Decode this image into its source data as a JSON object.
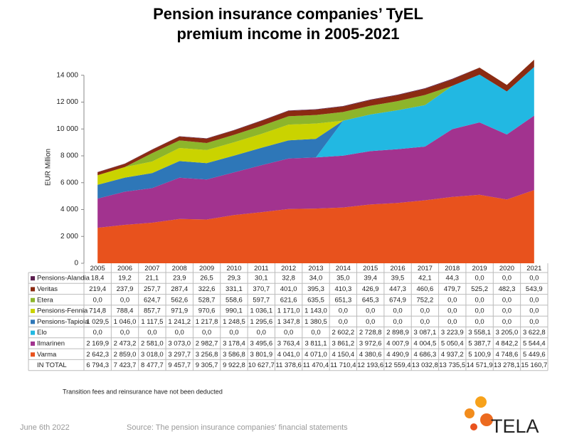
{
  "chart_data": {
    "type": "area",
    "stacked": true,
    "title": "Pension insurance companies’ TyEL premium income in 2005-2021",
    "ylabel": "EUR Million",
    "categories": [
      "2005",
      "2006",
      "2007",
      "2008",
      "2009",
      "2010",
      "2011",
      "2012",
      "2013",
      "2014",
      "2015",
      "2016",
      "2017",
      "2018",
      "2019",
      "2020",
      "2021"
    ],
    "ylim": [
      0,
      16000
    ],
    "yticks": [
      0,
      {
        "value": 2000,
        "label": "2 000"
      },
      {
        "value": 4000,
        "label": "4 000"
      },
      {
        "value": 6000,
        "label": "6 000"
      },
      {
        "value": 8000,
        "label": "8 000"
      },
      {
        "value": 10000,
        "label": "10 000"
      },
      {
        "value": 12000,
        "label": "12 000"
      },
      {
        "value": 14000,
        "label": "14 000"
      }
    ],
    "series": [
      {
        "name": "Varma",
        "color": "#e8521d",
        "values": [
          2642.3,
          2859.0,
          3018.0,
          3297.7,
          3256.8,
          3586.8,
          3801.9,
          4041.0,
          4071.0,
          4150.4,
          4380.6,
          4490.9,
          4686.3,
          4937.2,
          5100.9,
          4748.6,
          5449.6
        ],
        "value_labels": [
          "2 642,3",
          "2 859,0",
          "3 018,0",
          "3 297,7",
          "3 256,8",
          "3 586,8",
          "3 801,9",
          "4 041,0",
          "4 071,0",
          "4 150,4",
          "4 380,6",
          "4 490,9",
          "4 686,3",
          "4 937,2",
          "5 100,9",
          "4 748,6",
          "5 449,6"
        ]
      },
      {
        "name": "Ilmarinen",
        "color": "#a2338f",
        "values": [
          2169.9,
          2473.2,
          2581.0,
          3073.0,
          2982.7,
          3178.4,
          3495.6,
          3763.4,
          3811.1,
          3861.2,
          3972.6,
          4007.9,
          4004.5,
          5050.4,
          5387.7,
          4842.2,
          5544.4
        ],
        "value_labels": [
          "2 169,9",
          "2 473,2",
          "2 581,0",
          "3 073,0",
          "2 982,7",
          "3 178,4",
          "3 495,6",
          "3 763,4",
          "3 811,1",
          "3 861,2",
          "3 972,6",
          "4 007,9",
          "4 004,5",
          "5 050,4",
          "5 387,7",
          "4 842,2",
          "5 544,4"
        ]
      },
      {
        "name": "Elo",
        "color": "#22b8e2",
        "values": [
          0,
          0,
          0,
          0,
          0,
          0,
          0,
          0,
          0,
          2602.2,
          2728.8,
          2898.9,
          3087.1,
          3223.9,
          3558.1,
          3205.0,
          3622.8
        ],
        "value_labels": [
          "0,0",
          "0,0",
          "0,0",
          "0,0",
          "0,0",
          "0,0",
          "0,0",
          "0,0",
          "0,0",
          "2 602,2",
          "2 728,8",
          "2 898,9",
          "3 087,1",
          "3 223,9",
          "3 558,1",
          "3 205,0",
          "3 622,8"
        ]
      },
      {
        "name": "Pensions-Tapiola",
        "color": "#2e77b8",
        "values": [
          1029.5,
          1046.0,
          1117.5,
          1241.2,
          1217.8,
          1248.5,
          1295.6,
          1347.8,
          1380.5,
          0,
          0,
          0,
          0,
          0,
          0,
          0,
          0
        ],
        "value_labels": [
          "1 029,5",
          "1 046,0",
          "1 117,5",
          "1 241,2",
          "1 217,8",
          "1 248,5",
          "1 295,6",
          "1 347,8",
          "1 380,5",
          "0,0",
          "0,0",
          "0,0",
          "0,0",
          "0,0",
          "0,0",
          "0,0",
          "0,0"
        ]
      },
      {
        "name": "Pensions-Fennia",
        "color": "#cad300",
        "values": [
          714.8,
          788.4,
          857.7,
          971.9,
          970.6,
          990.1,
          1036.1,
          1171.0,
          1143.0,
          0,
          0,
          0,
          0,
          0,
          0,
          0,
          0
        ],
        "value_labels": [
          "714,8",
          "788,4",
          "857,7",
          "971,9",
          "970,6",
          "990,1",
          "1 036,1",
          "1 171,0",
          "1 143,0",
          "0,0",
          "0,0",
          "0,0",
          "0,0",
          "0,0",
          "0,0",
          "0,0",
          "0,0"
        ]
      },
      {
        "name": "Etera",
        "color": "#8db52b",
        "values": [
          0,
          0,
          624.7,
          562.6,
          528.7,
          558.6,
          597.7,
          621.6,
          635.5,
          651.3,
          645.3,
          674.9,
          752.2,
          0,
          0,
          0,
          0
        ],
        "value_labels": [
          "0,0",
          "0,0",
          "624,7",
          "562,6",
          "528,7",
          "558,6",
          "597,7",
          "621,6",
          "635,5",
          "651,3",
          "645,3",
          "674,9",
          "752,2",
          "0,0",
          "0,0",
          "0,0",
          "0,0"
        ]
      },
      {
        "name": "Veritas",
        "color": "#8b2b12",
        "values": [
          219.4,
          237.9,
          257.7,
          287.4,
          322.6,
          331.1,
          370.7,
          401.0,
          395.3,
          410.3,
          426.9,
          447.3,
          460.6,
          479.7,
          525.2,
          482.3,
          543.9
        ],
        "value_labels": [
          "219,4",
          "237,9",
          "257,7",
          "287,4",
          "322,6",
          "331,1",
          "370,7",
          "401,0",
          "395,3",
          "410,3",
          "426,9",
          "447,3",
          "460,6",
          "479,7",
          "525,2",
          "482,3",
          "543,9"
        ]
      },
      {
        "name": "Pensions-Alandia",
        "color": "#5b1f4f",
        "values": [
          18.4,
          19.2,
          21.1,
          23.9,
          26.5,
          29.3,
          30.1,
          32.8,
          34.0,
          35.0,
          39.4,
          39.5,
          42.1,
          44.3,
          0,
          0,
          0
        ],
        "value_labels": [
          "18,4",
          "19,2",
          "21,1",
          "23,9",
          "26,5",
          "29,3",
          "30,1",
          "32,8",
          "34,0",
          "35,0",
          "39,4",
          "39,5",
          "42,1",
          "44,3",
          "0,0",
          "0,0",
          "0,0"
        ]
      }
    ],
    "totals": {
      "name": "IN TOTAL",
      "values": [
        6794.3,
        7423.7,
        8477.7,
        9457.7,
        9305.7,
        9922.8,
        10627.7,
        11378.6,
        11470.4,
        11710.4,
        12193.6,
        12559.4,
        13032.8,
        13735.5,
        14571.9,
        13278.1,
        15160.7
      ],
      "value_labels": [
        "6 794,3",
        "7 423,7",
        "8 477,7",
        "9 457,7",
        "9 305,7",
        "9 922,8",
        "10 627,7",
        "11 378,6",
        "11 470,4",
        "11 710,4",
        "12 193,6",
        "12 559,4",
        "13 032,8",
        "13 735,5",
        "14 571,9",
        "13 278,1",
        "15 160,7"
      ]
    },
    "note": "Transition fees and reinsurance have not been deducted"
  },
  "footer": {
    "date": "June 6th 2022",
    "source": "Source: The pension insurance companies' financial statements",
    "logo": "TELA"
  }
}
